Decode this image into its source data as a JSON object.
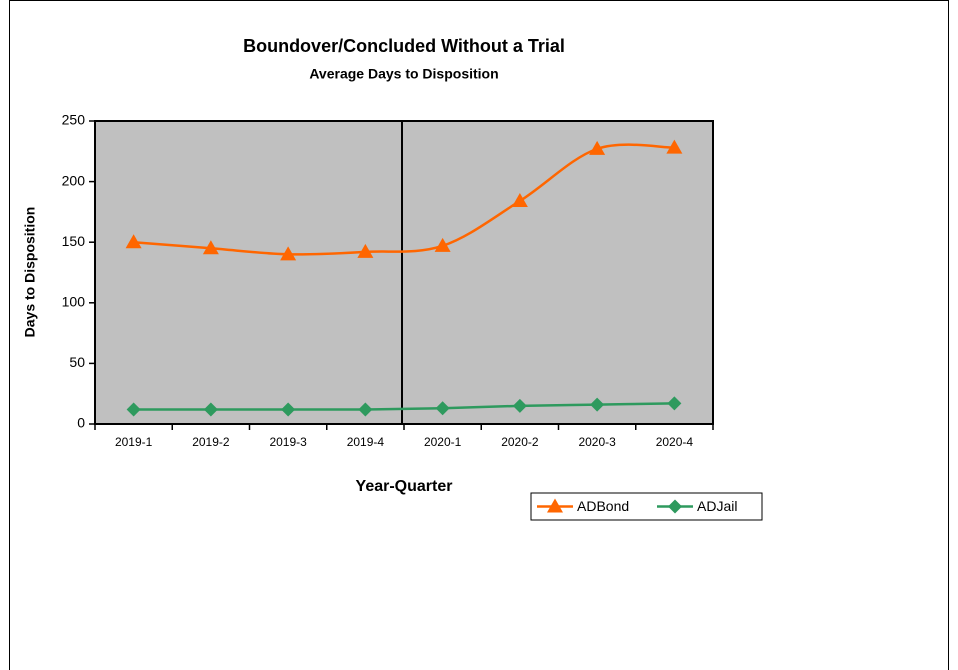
{
  "chart_data": {
    "type": "line",
    "title": "Boundover/Concluded Without a Trial",
    "subtitle": "Average Days to Disposition",
    "x_label": "Year-Quarter",
    "y_label": "Days to Disposition",
    "categories": [
      "2019-1",
      "2019-2",
      "2019-3",
      "2019-4",
      "2020-1",
      "2020-2",
      "2020-3",
      "2020-4"
    ],
    "series": [
      {
        "name": "ADBond",
        "color": "#ff6600",
        "marker": "triangle",
        "values": [
          150,
          145,
          140,
          142,
          147,
          184,
          227,
          228
        ]
      },
      {
        "name": "ADJail",
        "color": "#2e9a5e",
        "marker": "diamond",
        "values": [
          12,
          12,
          12,
          12,
          13,
          15,
          16,
          17
        ]
      }
    ],
    "ylim": [
      0,
      250
    ],
    "yticks": [
      0,
      50,
      100,
      150,
      200,
      250
    ],
    "smooth": true,
    "legend": "bottom-right"
  }
}
